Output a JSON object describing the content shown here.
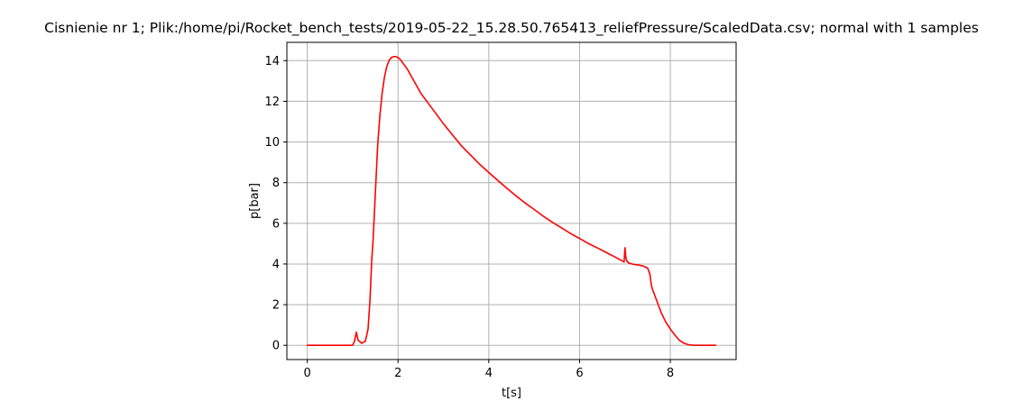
{
  "chart_data": {
    "type": "line",
    "title": "Cisnienie nr 1; Plik:/home/pi/Rocket_bench_tests/2019-05-22_15.28.50.765413_reliefPressure/ScaledData.csv; normal with 1 samples",
    "xlabel": "t[s]",
    "ylabel": "p[bar]",
    "xlim": [
      -0.45,
      9.45
    ],
    "ylim": [
      -0.7,
      14.9
    ],
    "grid": true,
    "legend": "none",
    "xticks": [
      0,
      2,
      4,
      6,
      8
    ],
    "yticks": [
      0,
      2,
      4,
      6,
      8,
      10,
      12,
      14
    ],
    "series": [
      {
        "color": "#ff0000",
        "x": [
          0,
          0.5,
          1.0,
          1.04,
          1.08,
          1.12,
          1.2,
          1.28,
          1.34,
          1.38,
          1.42,
          1.45,
          1.5,
          1.55,
          1.6,
          1.65,
          1.7,
          1.75,
          1.8,
          1.85,
          1.9,
          1.95,
          2.0,
          2.05,
          2.1,
          2.2,
          2.3,
          2.4,
          2.5,
          2.6,
          2.8,
          3.0,
          3.2,
          3.4,
          3.6,
          3.8,
          4.0,
          4.2,
          4.4,
          4.6,
          4.8,
          5.0,
          5.2,
          5.4,
          5.6,
          5.8,
          6.0,
          6.2,
          6.4,
          6.6,
          6.8,
          6.9,
          6.98,
          7.0,
          7.02,
          7.04,
          7.08,
          7.15,
          7.2,
          7.3,
          7.4,
          7.5,
          7.55,
          7.58,
          7.6,
          7.7,
          7.8,
          7.9,
          8.0,
          8.1,
          8.2,
          8.3,
          8.4,
          8.5,
          8.7,
          9.0
        ],
        "y": [
          0.0,
          0.0,
          0.0,
          0.2,
          0.65,
          0.25,
          0.1,
          0.2,
          0.8,
          2.2,
          4.2,
          5.2,
          7.5,
          9.8,
          11.3,
          12.4,
          13.2,
          13.7,
          14.0,
          14.15,
          14.2,
          14.2,
          14.15,
          14.05,
          13.9,
          13.6,
          13.2,
          12.8,
          12.4,
          12.1,
          11.5,
          10.9,
          10.35,
          9.8,
          9.35,
          8.9,
          8.5,
          8.1,
          7.72,
          7.35,
          7.0,
          6.68,
          6.35,
          6.05,
          5.78,
          5.5,
          5.25,
          5.0,
          4.78,
          4.55,
          4.32,
          4.2,
          4.1,
          4.8,
          4.3,
          4.15,
          4.05,
          4.0,
          3.98,
          3.95,
          3.9,
          3.8,
          3.5,
          3.0,
          2.8,
          2.2,
          1.6,
          1.15,
          0.8,
          0.5,
          0.25,
          0.1,
          0.03,
          0.0,
          0.0,
          0.0
        ]
      }
    ]
  }
}
